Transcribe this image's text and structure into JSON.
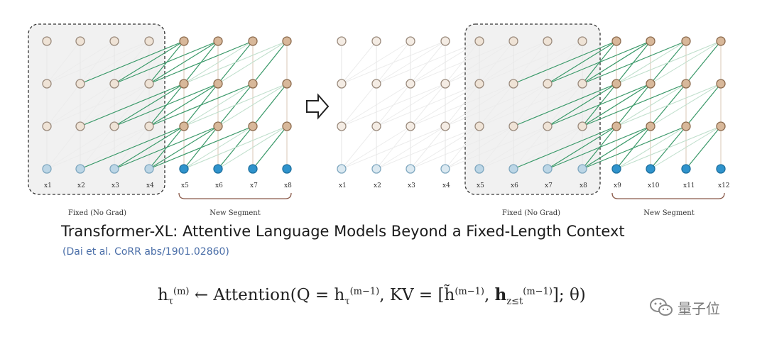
{
  "left_panel": {
    "x_labels": [
      "x1",
      "x2",
      "x3",
      "x4",
      "x5",
      "x6",
      "x7",
      "x8"
    ],
    "fixed_label": "Fixed (No Grad)",
    "new_label": "New Segment"
  },
  "right_panel": {
    "x_labels": [
      "x1",
      "x2",
      "x3",
      "x4",
      "x5",
      "x6",
      "x7",
      "x8",
      "x9",
      "x10",
      "x11",
      "x12"
    ],
    "fixed_label": "Fixed (No Grad)",
    "new_label": "New Segment"
  },
  "title": "Transformer-XL: Attentive Language Models Beyond a Fixed-Length Context",
  "citation": "(Dai et al. CoRR abs/1901.02860)",
  "formula": {
    "lhs": "h",
    "arrow": "←",
    "fn": "Attention(Q = ",
    "kv": ", KV = [",
    "tail": "]; θ)"
  },
  "brand": {
    "text": "量子位",
    "icon": "wechat-icon"
  },
  "colors": {
    "fixed_node": "#efe3d6",
    "new_node": "#d8b89a",
    "blue_fixed": "#bcd6e6",
    "blue_new": "#2f93cc",
    "edge_green": "#3b9a6a",
    "edge_faint": "#bfe0cc"
  }
}
